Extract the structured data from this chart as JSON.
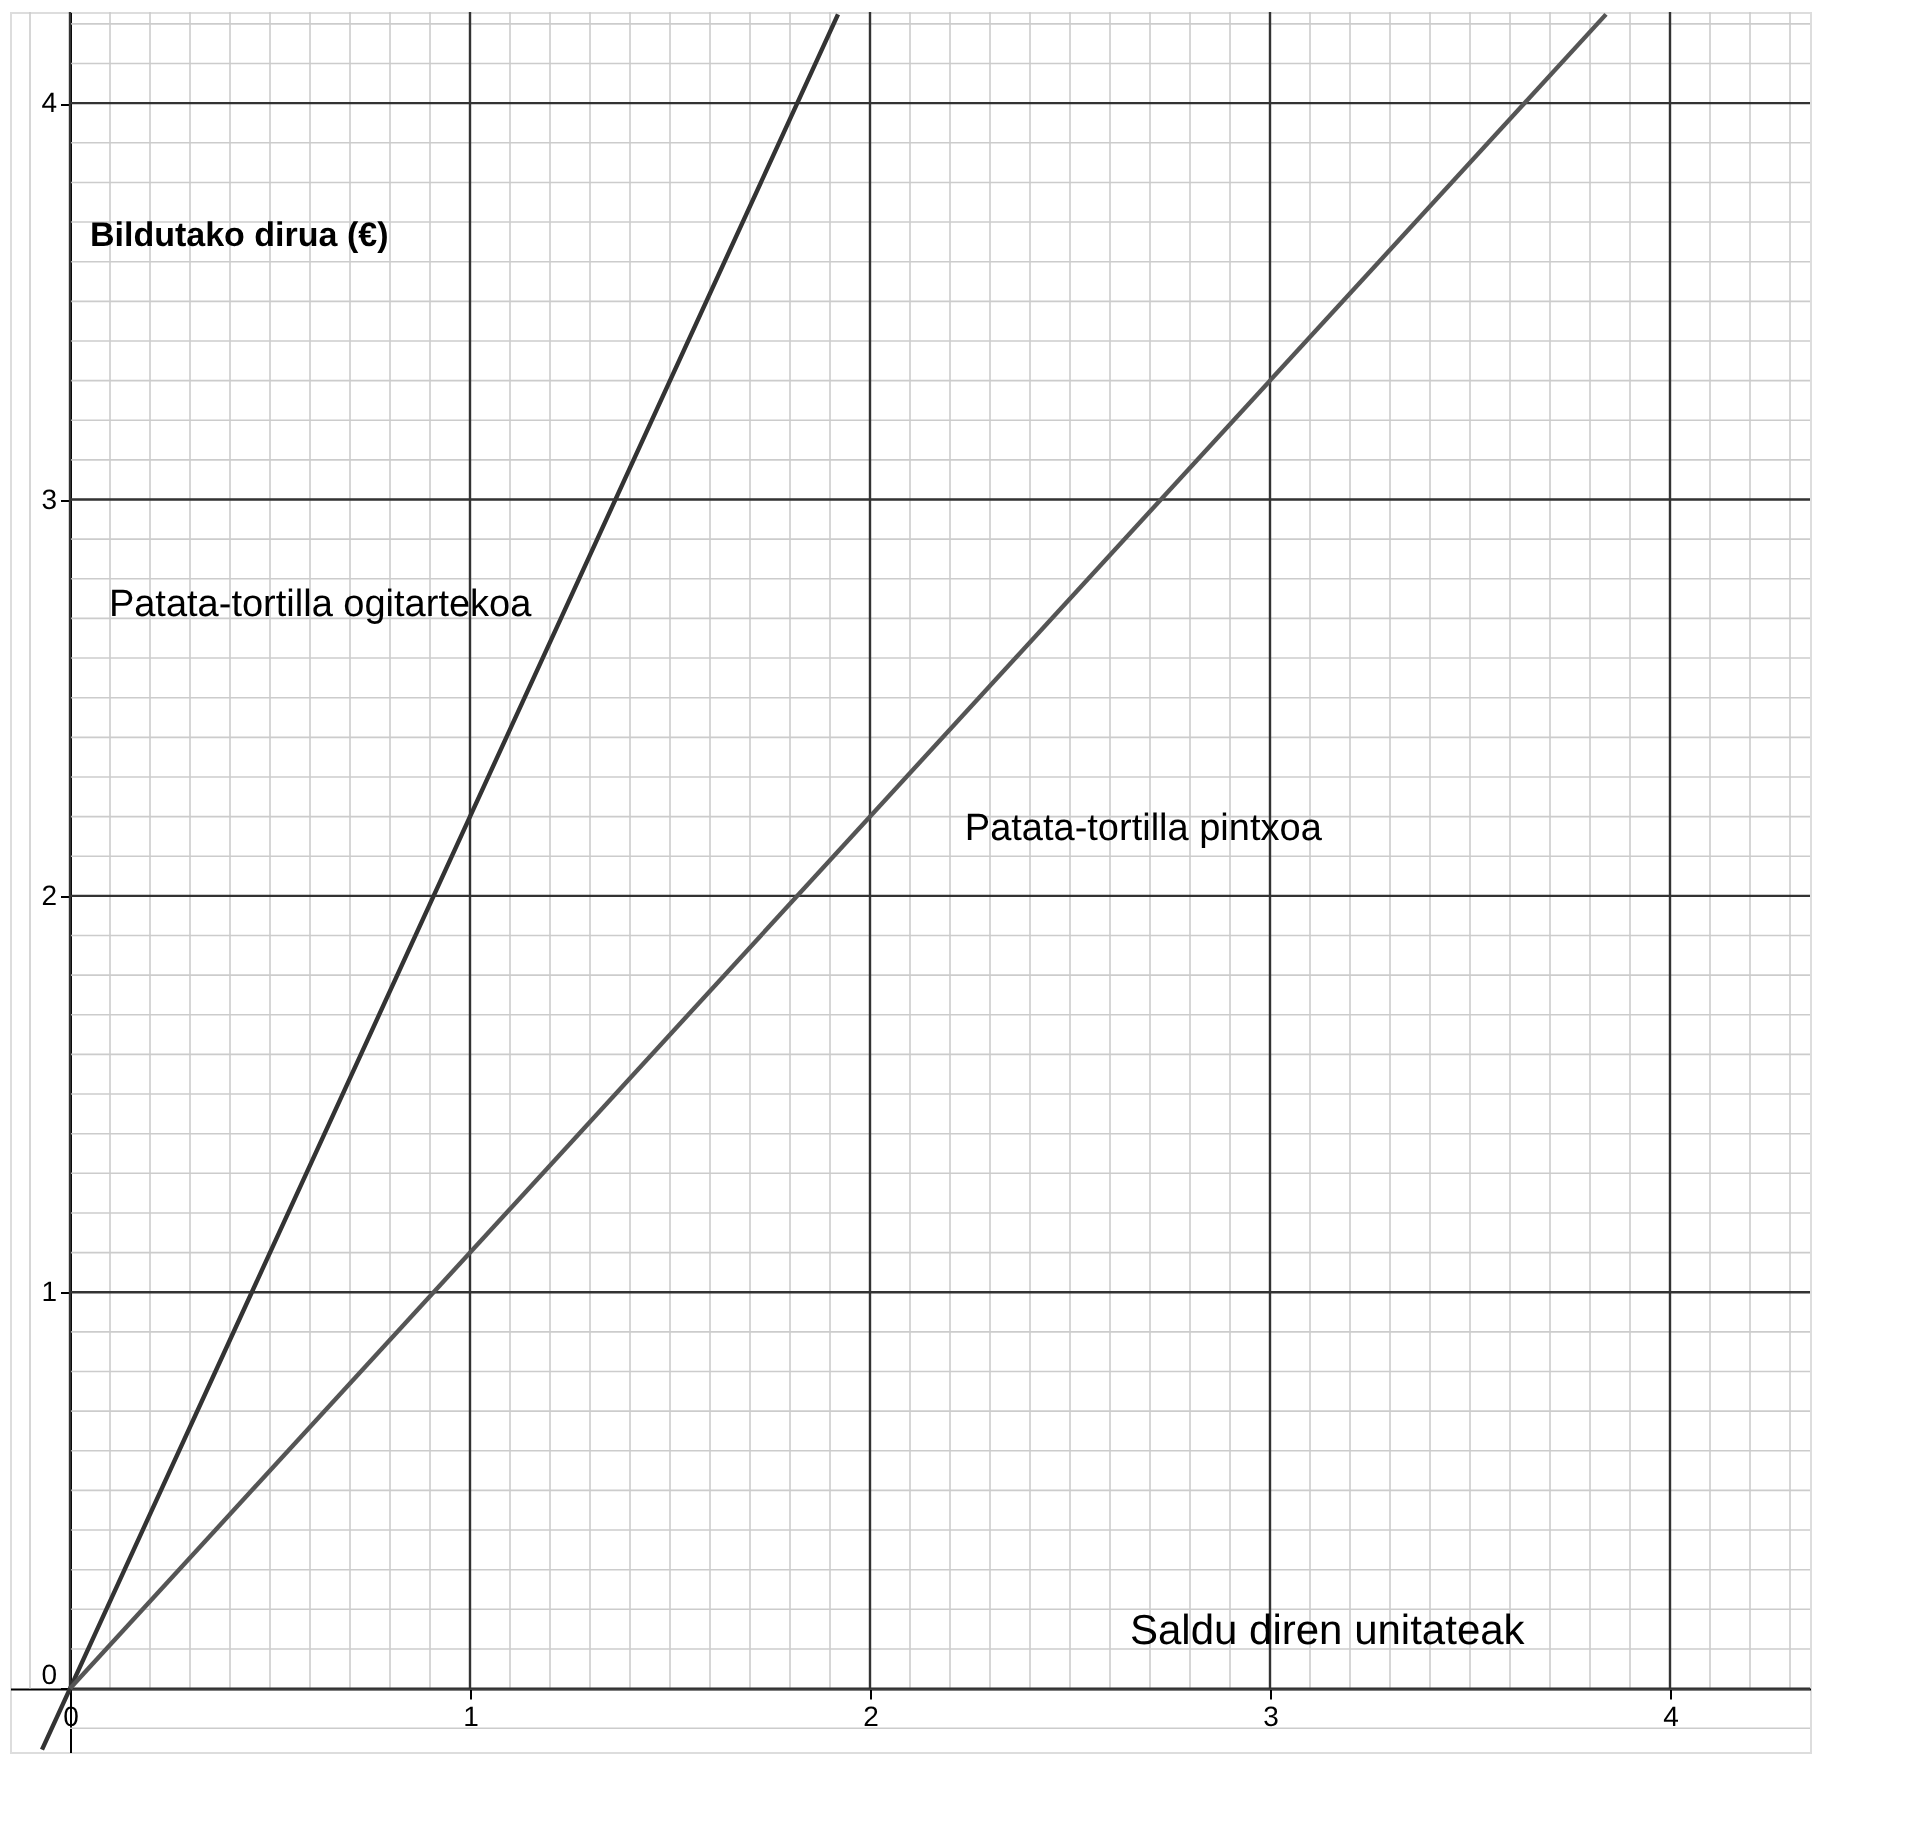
{
  "chart_data": {
    "type": "line",
    "xlabel": "Saldu diren unitateak",
    "ylabel": "Bildutako dirua (€)",
    "xlim": [
      -0.15,
      4.35
    ],
    "ylim": [
      -0.16,
      4.23
    ],
    "xticks": [
      0,
      1,
      2,
      3,
      4
    ],
    "yticks": [
      0,
      1,
      2,
      3,
      4
    ],
    "grid": true,
    "marker": "none",
    "line_style": "solid",
    "series": [
      {
        "name": "Patata-tortilla ogitartekoa",
        "color": "#333333",
        "x": [
          -0.07,
          0,
          1.92
        ],
        "values": [
          -0.154,
          0,
          4.224
        ]
      },
      {
        "name": "Patata-tortilla pintxoa",
        "color": "#555555",
        "x": [
          0,
          3.84
        ],
        "values": [
          0,
          4.224
        ]
      }
    ]
  }
}
